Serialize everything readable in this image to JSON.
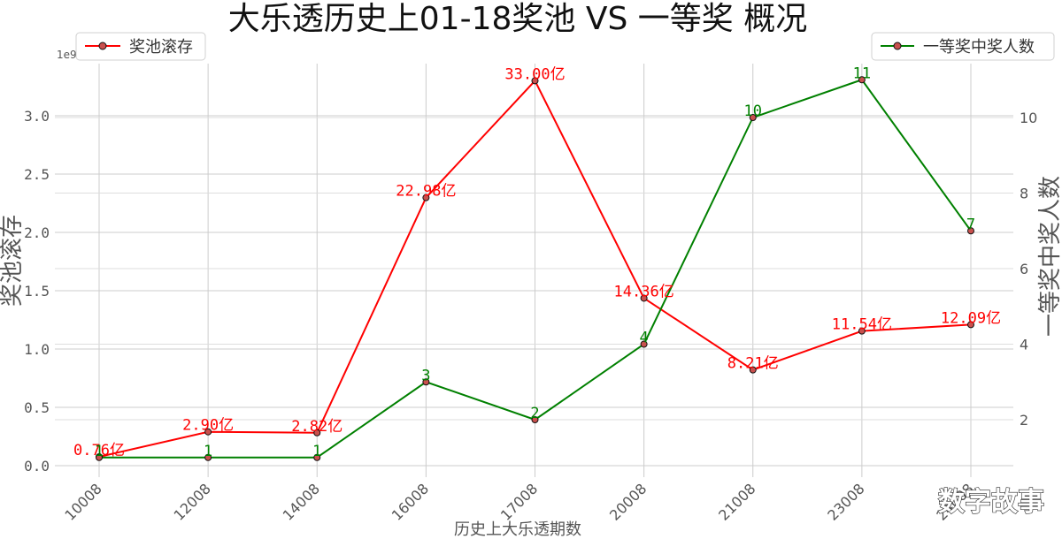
{
  "chart_data": {
    "type": "line",
    "title": "大乐透历史上01-18奖池 VS 一等奖 概况",
    "xlabel": "历史上大乐透期数",
    "categories": [
      "10008",
      "12008",
      "14008",
      "16008",
      "17008",
      "20008",
      "21008",
      "23008",
      "24008"
    ],
    "y_left": {
      "label": "奖池滚存",
      "scale_note": "1e9",
      "ylim": [
        0,
        3.4
      ],
      "ticks": [
        "0.0",
        "0.5",
        "1.0",
        "1.5",
        "2.0",
        "2.5",
        "3.0"
      ]
    },
    "y_right": {
      "label": "一等奖中奖人数",
      "ylim": [
        0.6,
        11.6
      ],
      "ticks": [
        "2",
        "4",
        "6",
        "8",
        "10"
      ]
    },
    "series": [
      {
        "name": "奖池滚存",
        "axis": "left",
        "color": "#ff0000",
        "values": [
          0.076,
          0.29,
          0.282,
          2.298,
          3.3,
          1.436,
          0.821,
          1.154,
          1.209
        ],
        "labels": [
          "0.76亿",
          "2.90亿",
          "2.82亿",
          "22.98亿",
          "33.00亿",
          "14.36亿",
          "8.21亿",
          "11.54亿",
          "12.09亿"
        ]
      },
      {
        "name": "一等奖中奖人数",
        "axis": "right",
        "color": "#008000",
        "values": [
          1,
          1,
          1,
          3,
          2,
          4,
          10,
          11,
          7
        ],
        "labels": [
          "1",
          "1",
          "1",
          "3",
          "2",
          "4",
          "10",
          "11",
          "7"
        ]
      }
    ],
    "legend_left": "top-left",
    "legend_right": "top-right",
    "grid": true
  },
  "watermark": "数字故事"
}
